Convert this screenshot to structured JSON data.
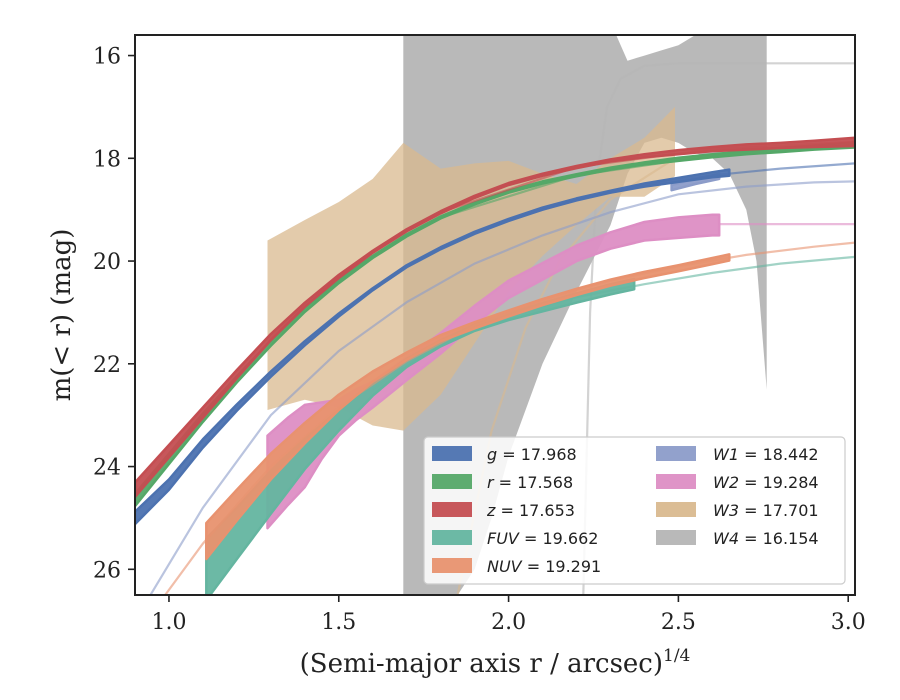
{
  "chart_data": {
    "type": "line",
    "title": "",
    "xlabel": "(Semi-major axis r / arcsec)",
    "xlabel_exponent": "1/4",
    "ylabel": "m(< r) (mag)",
    "xlim": [
      0.9,
      3.02
    ],
    "ylim": [
      26.5,
      15.6
    ],
    "y_inverted": true,
    "grid": false,
    "legend_placement": "lower-right",
    "legend_columns": 2,
    "xticks": [
      1.0,
      1.5,
      2.0,
      2.5,
      3.0
    ],
    "xtick_labels": [
      "1.0",
      "1.5",
      "2.0",
      "2.5",
      "3.0"
    ],
    "yticks": [
      16,
      18,
      20,
      22,
      24,
      26
    ],
    "ytick_labels": [
      "16",
      "18",
      "20",
      "22",
      "24",
      "26"
    ],
    "series": [
      {
        "name": "g",
        "total_label": "g = 17.968",
        "total": 17.968,
        "color": "#4c72b0",
        "band": {
          "x": [
            0.9,
            1.0,
            1.1,
            1.2,
            1.3,
            1.4,
            1.5,
            1.6,
            1.7,
            1.8,
            1.9,
            2.0,
            2.1,
            2.2,
            2.3,
            2.4,
            2.5,
            2.6,
            2.65
          ],
          "y": [
            25.0,
            24.35,
            23.55,
            22.85,
            22.2,
            21.6,
            21.05,
            20.55,
            20.1,
            19.75,
            19.45,
            19.2,
            18.98,
            18.8,
            18.65,
            18.52,
            18.42,
            18.32,
            18.28
          ],
          "halfwidth": [
            0.12,
            0.1,
            0.08,
            0.06,
            0.05,
            0.04,
            0.03,
            0.02,
            0.02,
            0.02,
            0.02,
            0.02,
            0.02,
            0.02,
            0.02,
            0.03,
            0.04,
            0.05,
            0.06
          ]
        },
        "model": {
          "x": [
            2.0,
            2.2,
            2.4,
            2.6,
            2.8,
            3.02
          ],
          "y": [
            19.2,
            18.8,
            18.52,
            18.33,
            18.2,
            18.1
          ]
        }
      },
      {
        "name": "r",
        "total_label": "r = 17.568",
        "total": 17.568,
        "color": "#55a868",
        "band": {
          "x": [
            0.9,
            1.0,
            1.1,
            1.2,
            1.3,
            1.4,
            1.5,
            1.6,
            1.7,
            1.8,
            1.9,
            2.0,
            2.1,
            2.2,
            2.3,
            2.4,
            2.5,
            2.6,
            2.7,
            2.8,
            2.9,
            3.02
          ],
          "y": [
            24.65,
            23.85,
            23.05,
            22.3,
            21.6,
            20.95,
            20.4,
            19.92,
            19.5,
            19.15,
            18.88,
            18.65,
            18.47,
            18.33,
            18.2,
            18.1,
            18.02,
            17.95,
            17.89,
            17.84,
            17.79,
            17.74
          ],
          "halfwidth": [
            0.12,
            0.1,
            0.08,
            0.06,
            0.05,
            0.04,
            0.03,
            0.02,
            0.02,
            0.02,
            0.02,
            0.02,
            0.02,
            0.02,
            0.02,
            0.02,
            0.03,
            0.03,
            0.03,
            0.04,
            0.04,
            0.05
          ]
        },
        "model": {
          "x": [
            1.8,
            2.2,
            2.6,
            3.02
          ],
          "y": [
            19.15,
            18.33,
            17.95,
            17.74
          ]
        }
      },
      {
        "name": "z",
        "total_label": "z = 17.653",
        "total": 17.653,
        "color": "#c44e52",
        "band": {
          "x": [
            0.9,
            1.0,
            1.1,
            1.2,
            1.3,
            1.4,
            1.5,
            1.6,
            1.7,
            1.8,
            1.9,
            2.0,
            2.1,
            2.2,
            2.3,
            2.4,
            2.5,
            2.6,
            2.7,
            2.8,
            2.9,
            3.02
          ],
          "y": [
            24.45,
            23.7,
            22.95,
            22.2,
            21.48,
            20.85,
            20.3,
            19.82,
            19.4,
            19.05,
            18.75,
            18.5,
            18.32,
            18.17,
            18.04,
            17.95,
            17.88,
            17.82,
            17.78,
            17.75,
            17.72,
            17.68
          ],
          "halfwidth": [
            0.14,
            0.12,
            0.1,
            0.08,
            0.06,
            0.04,
            0.03,
            0.02,
            0.02,
            0.02,
            0.02,
            0.02,
            0.02,
            0.02,
            0.02,
            0.03,
            0.04,
            0.04,
            0.05,
            0.05,
            0.06,
            0.08
          ]
        },
        "model": {
          "x": [
            1.8,
            2.2,
            2.6,
            3.02
          ],
          "y": [
            19.05,
            18.17,
            17.82,
            17.68
          ]
        }
      },
      {
        "name": "FUV",
        "total_label": "FUV = 19.662",
        "total": 19.662,
        "color": "#64b5a0",
        "band": {
          "x": [
            1.11,
            1.2,
            1.3,
            1.4,
            1.5,
            1.6,
            1.7,
            1.8,
            1.9,
            2.0,
            2.1,
            2.2,
            2.3,
            2.37
          ],
          "y": [
            26.0,
            25.3,
            24.5,
            23.75,
            23.1,
            22.5,
            21.98,
            21.6,
            21.3,
            21.08,
            20.9,
            20.72,
            20.55,
            20.45
          ],
          "halfwidth": [
            0.6,
            0.5,
            0.42,
            0.3,
            0.2,
            0.12,
            0.08,
            0.06,
            0.06,
            0.07,
            0.08,
            0.09,
            0.1,
            0.1
          ]
        },
        "model": {
          "x": [
            1.6,
            1.8,
            2.0,
            2.2,
            2.4,
            2.6,
            2.8,
            3.02
          ],
          "y": [
            22.5,
            21.6,
            21.05,
            20.7,
            20.45,
            20.23,
            20.05,
            19.92
          ]
        }
      },
      {
        "name": "NUV",
        "total_label": "NUV = 19.291",
        "total": 19.291,
        "color": "#e8926f",
        "band": {
          "x": [
            1.11,
            1.2,
            1.3,
            1.4,
            1.5,
            1.6,
            1.7,
            1.8,
            1.9,
            2.0,
            2.1,
            2.2,
            2.3,
            2.4,
            2.5,
            2.6,
            2.65
          ],
          "y": [
            25.45,
            24.75,
            24.0,
            23.35,
            22.75,
            22.25,
            21.85,
            21.5,
            21.25,
            21.02,
            20.8,
            20.6,
            20.42,
            20.27,
            20.14,
            20.0,
            19.93
          ],
          "halfwidth": [
            0.35,
            0.3,
            0.25,
            0.2,
            0.15,
            0.1,
            0.07,
            0.06,
            0.06,
            0.06,
            0.06,
            0.06,
            0.06,
            0.06,
            0.06,
            0.06,
            0.06
          ]
        },
        "model": {
          "x": [
            0.9,
            1.1,
            1.3,
            1.5,
            1.7,
            1.9,
            2.1,
            2.3,
            2.5,
            2.7,
            2.9,
            3.02
          ],
          "y": [
            27.3,
            25.5,
            24.0,
            22.85,
            21.95,
            21.25,
            20.75,
            20.38,
            20.1,
            19.88,
            19.72,
            19.64
          ]
        }
      },
      {
        "name": "W1",
        "total_label": "W1 = 18.442",
        "total": 18.442,
        "color": "#8c9cc9",
        "band": {
          "x": [
            2.48,
            2.55,
            2.62
          ],
          "y": [
            18.57,
            18.45,
            18.35
          ],
          "halfwidth": [
            0.05,
            0.05,
            0.05
          ]
        },
        "model": {
          "x": [
            0.9,
            1.1,
            1.3,
            1.5,
            1.7,
            1.9,
            2.1,
            2.3,
            2.5,
            2.7,
            2.9,
            3.02
          ],
          "y": [
            27.0,
            24.8,
            23.0,
            21.75,
            20.8,
            20.05,
            19.5,
            19.05,
            18.7,
            18.55,
            18.47,
            18.45
          ]
        }
      },
      {
        "name": "W2",
        "total_label": "W2 = 19.284",
        "total": 19.284,
        "color": "#dd8ec4",
        "band": {
          "x": [
            1.29,
            1.35,
            1.4,
            1.45,
            1.5,
            1.55,
            1.6,
            1.7,
            1.8,
            1.9,
            2.0,
            2.1,
            2.2,
            2.3,
            2.4,
            2.5,
            2.6,
            2.62
          ],
          "y": [
            24.3,
            23.9,
            23.6,
            23.3,
            23.05,
            22.8,
            22.6,
            22.1,
            21.6,
            21.05,
            20.55,
            20.2,
            19.85,
            19.6,
            19.42,
            19.35,
            19.3,
            19.3
          ],
          "halfwidth": [
            0.9,
            0.85,
            0.8,
            0.55,
            0.35,
            0.3,
            0.25,
            0.22,
            0.2,
            0.18,
            0.17,
            0.16,
            0.15,
            0.16,
            0.18,
            0.2,
            0.2,
            0.2
          ]
        },
        "model": {
          "x": [
            2.62,
            3.02
          ],
          "y": [
            19.28,
            19.28
          ]
        }
      },
      {
        "name": "W3",
        "total_label": "W3 = 17.701",
        "total": 17.701,
        "color": "#d9b98f",
        "band": {
          "x": [
            1.29,
            1.4,
            1.5,
            1.6,
            1.69,
            1.8,
            1.9,
            2.0,
            2.1,
            2.2,
            2.3,
            2.4,
            2.49
          ],
          "y_upper": [
            19.6,
            19.2,
            18.85,
            18.4,
            17.7,
            18.2,
            18.1,
            18.05,
            18.3,
            18.5,
            18.0,
            17.6,
            17.0
          ],
          "y_lower": [
            22.9,
            22.7,
            22.85,
            23.2,
            23.3,
            22.6,
            21.6,
            20.6,
            19.9,
            19.3,
            18.75,
            18.75,
            18.35
          ]
        },
        "model": {
          "x": [
            1.85,
            1.95,
            2.05,
            2.15,
            2.3,
            2.49
          ],
          "y": [
            26.5,
            23.3,
            21.3,
            20.0,
            18.8,
            18.0
          ]
        }
      },
      {
        "name": "W4",
        "total_label": "W4 = 16.154",
        "total": 16.154,
        "color": "#b5b5b5",
        "band": {
          "x": [
            1.69,
            1.8,
            1.85,
            1.9,
            1.95,
            2.0,
            2.1,
            2.2,
            2.3,
            2.35,
            2.4,
            2.45,
            2.5,
            2.55,
            2.6,
            2.65,
            2.7,
            2.73,
            2.76
          ],
          "y_upper": [
            15.6,
            15.6,
            15.6,
            15.6,
            15.6,
            15.6,
            15.35,
            15.4,
            15.35,
            16.1,
            16.0,
            15.9,
            15.8,
            15.6,
            15.6,
            15.6,
            15.6,
            15.6,
            15.6
          ],
          "y_lower": [
            26.5,
            26.5,
            26.5,
            26.0,
            25.0,
            23.8,
            22.0,
            20.6,
            19.3,
            18.3,
            17.7,
            17.6,
            17.7,
            17.9,
            18.0,
            18.3,
            19.0,
            20.0,
            22.5
          ]
        },
        "model": {
          "x": [
            2.22,
            2.24,
            2.26,
            2.29,
            2.33,
            2.4,
            2.5,
            2.7,
            3.02
          ],
          "y": [
            26.5,
            21.0,
            18.4,
            17.0,
            16.45,
            16.2,
            16.15,
            16.15,
            16.15
          ]
        }
      }
    ]
  }
}
